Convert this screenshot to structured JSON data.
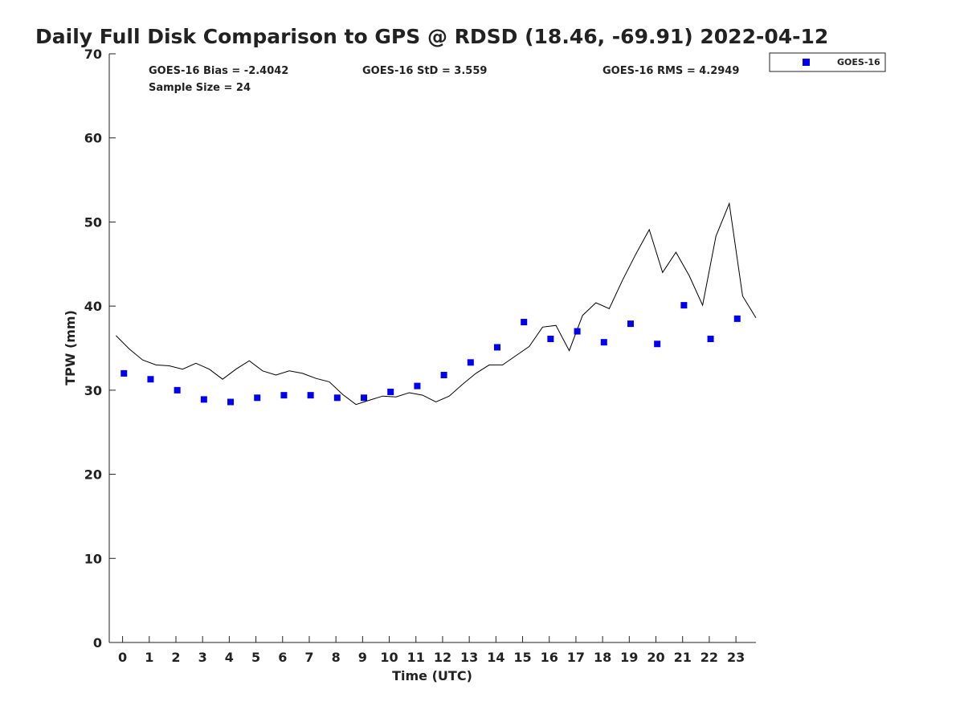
{
  "chart_data": {
    "type": "scatter",
    "title": "Daily Full Disk Comparison to GPS @ RDSD (18.46, -69.91) 2022-04-12",
    "xlabel": "Time (UTC)",
    "ylabel": "TPW (mm)",
    "xlim": [
      -0.5,
      23.75
    ],
    "ylim": [
      0,
      70
    ],
    "xticks": [
      "0",
      "1",
      "2",
      "3",
      "4",
      "5",
      "6",
      "7",
      "8",
      "9",
      "10",
      "11",
      "12",
      "13",
      "14",
      "15",
      "16",
      "17",
      "18",
      "19",
      "20",
      "21",
      "22",
      "23"
    ],
    "yticks": [
      "0",
      "10",
      "20",
      "30",
      "40",
      "50",
      "60",
      "70"
    ],
    "grid": false,
    "legend_position": "outside-top-right",
    "stats": {
      "bias": "GOES-16 Bias = -2.4042",
      "sample_size": "Sample Size = 24",
      "std": "GOES-16 StD = 3.559",
      "rms": "GOES-16 RMS = 4.2949"
    },
    "series": [
      {
        "name": "GOES-16",
        "marker": "square",
        "color": "#0000ee",
        "x": [
          0.05,
          1.05,
          2.05,
          3.05,
          4.05,
          5.05,
          6.05,
          7.05,
          8.05,
          9.05,
          10.05,
          11.05,
          12.05,
          13.05,
          14.05,
          15.05,
          16.05,
          17.05,
          18.05,
          19.05,
          20.05,
          21.05,
          22.05,
          23.05
        ],
        "y": [
          32.0,
          31.3,
          30.0,
          28.9,
          28.6,
          29.1,
          29.4,
          29.4,
          29.1,
          29.1,
          29.8,
          30.5,
          31.8,
          33.3,
          35.1,
          38.1,
          36.1,
          37.0,
          35.7,
          37.9,
          35.5,
          40.1,
          36.1,
          38.5
        ]
      },
      {
        "marker": "line",
        "color": "#000000",
        "x": [
          -0.25,
          0.25,
          0.75,
          1.25,
          1.75,
          2.25,
          2.75,
          3.25,
          3.75,
          4.25,
          4.75,
          5.25,
          5.75,
          6.25,
          6.75,
          7.25,
          7.75,
          8.25,
          8.75,
          9.25,
          9.75,
          10.25,
          10.75,
          11.25,
          11.75,
          12.25,
          12.75,
          13.25,
          13.75,
          14.25,
          14.75,
          15.25,
          15.75,
          16.25,
          16.75,
          17.25,
          17.75,
          18.25,
          18.75,
          19.25,
          19.75,
          20.25,
          20.75,
          21.25,
          21.75,
          22.25,
          22.75,
          23.25,
          23.75
        ],
        "y": [
          36.5,
          34.9,
          33.6,
          33.0,
          32.9,
          32.5,
          33.2,
          32.5,
          31.3,
          32.5,
          33.5,
          32.3,
          31.8,
          32.3,
          32.0,
          31.4,
          31.0,
          29.5,
          28.3,
          28.8,
          29.3,
          29.2,
          29.7,
          29.4,
          28.6,
          29.3,
          30.7,
          32.0,
          33.0,
          33.0,
          34.1,
          35.2,
          37.5,
          37.7,
          34.7,
          38.9,
          40.4,
          39.7,
          43.1,
          46.2,
          49.1,
          44.0,
          46.4,
          43.6,
          40.1,
          48.3,
          52.2,
          41.2,
          38.6
        ]
      }
    ]
  }
}
